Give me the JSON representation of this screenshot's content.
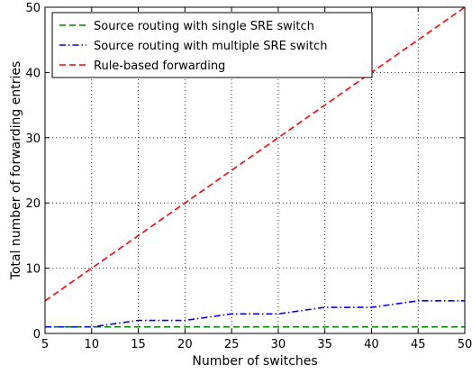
{
  "chart_data": {
    "type": "line",
    "title": "",
    "xlabel": "Number of switches",
    "ylabel": "Total number of forwarding entries",
    "xlim": [
      5,
      50
    ],
    "ylim": [
      0,
      50
    ],
    "x_ticks": [
      5,
      10,
      15,
      20,
      25,
      30,
      35,
      40,
      45,
      50
    ],
    "y_ticks": [
      0,
      10,
      20,
      30,
      40,
      50
    ],
    "grid": true,
    "grid_style": "dotted",
    "legend_position": "top-left",
    "series": [
      {
        "name": "Source routing with single SRE switch",
        "color": "#008000",
        "line_style": "dashed",
        "x": [
          5,
          10,
          15,
          20,
          25,
          30,
          35,
          40,
          45,
          50
        ],
        "y": [
          1,
          1,
          1,
          1,
          1,
          1,
          1,
          1,
          1,
          1
        ]
      },
      {
        "name": "Source routing with multiple SRE switch",
        "color": "#0000ff",
        "line_style": "dash-dot",
        "x": [
          5,
          10,
          15,
          20,
          25,
          30,
          35,
          40,
          45,
          50
        ],
        "y": [
          1,
          1,
          2,
          2,
          3,
          3,
          4,
          4,
          5,
          5
        ]
      },
      {
        "name": "Rule-based forwarding",
        "color": "#ff0000",
        "line_style": "dashed",
        "x": [
          5,
          10,
          15,
          20,
          25,
          30,
          35,
          40,
          45,
          50
        ],
        "y": [
          5,
          10,
          15,
          20,
          25,
          30,
          35,
          40,
          45,
          50
        ]
      }
    ]
  }
}
